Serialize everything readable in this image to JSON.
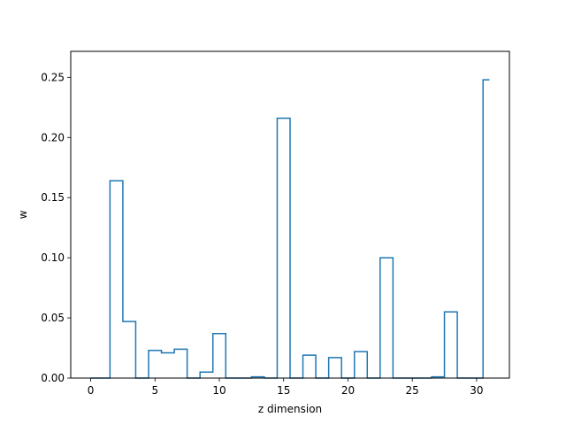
{
  "chart_data": {
    "type": "step",
    "title": "",
    "xlabel": "z dimension",
    "ylabel": "w",
    "xlim": [
      -1.55,
      32.55
    ],
    "ylim": [
      0,
      0.2716
    ],
    "xticks": [
      0,
      5,
      10,
      15,
      20,
      25,
      30
    ],
    "yticks": [
      0.0,
      0.05,
      0.1,
      0.15,
      0.2,
      0.25
    ],
    "grid": false,
    "legend": "none",
    "color": "#1f77b4",
    "x": [
      0,
      1,
      2,
      3,
      4,
      5,
      6,
      7,
      8,
      9,
      10,
      11,
      12,
      13,
      14,
      15,
      16,
      17,
      18,
      19,
      20,
      21,
      22,
      23,
      24,
      25,
      26,
      27,
      28,
      29,
      30,
      31
    ],
    "values": [
      0,
      0,
      0.164,
      0.047,
      0,
      0.023,
      0.021,
      0.024,
      0,
      0.005,
      0.037,
      0,
      0,
      0.001,
      0,
      0.216,
      0,
      0.019,
      0,
      0.017,
      0,
      0.022,
      0,
      0.1,
      0,
      0,
      0,
      0.001,
      0.055,
      0,
      0,
      0.248
    ]
  }
}
